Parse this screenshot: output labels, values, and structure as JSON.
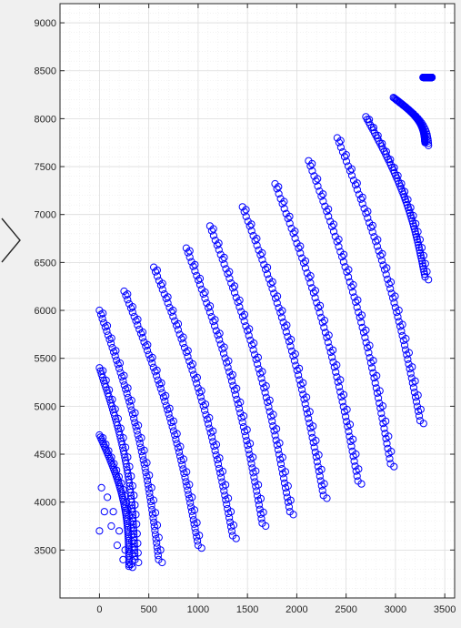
{
  "colors": {
    "figure_background": "#f0f0f0",
    "axes_background": "#ffffff",
    "marker": "#0000ff",
    "axis_line": "#262626",
    "grid_major": "#dcdcdc",
    "grid_minor": "#ebebeb"
  },
  "nav": {
    "icon": "chevron-right-icon"
  },
  "chart_data": {
    "type": "scatter",
    "marker": "circle-open",
    "xlim": [
      -400,
      3600
    ],
    "ylim": [
      3000,
      9200
    ],
    "x_ticks": [
      0,
      500,
      1000,
      1500,
      2000,
      2500,
      3000,
      3500
    ],
    "y_ticks": [
      3500,
      4000,
      4500,
      5000,
      5500,
      6000,
      6500,
      7000,
      7500,
      8000,
      8500,
      9000
    ],
    "grid": "major and minor",
    "title": "",
    "xlabel": "",
    "ylabel": "",
    "series": [
      {
        "points": [
          [
            0,
            3700
          ],
          [
            50,
            3900
          ],
          [
            120,
            3750
          ],
          [
            180,
            3550
          ],
          [
            240,
            3400
          ],
          [
            300,
            3330
          ],
          [
            20,
            4150
          ],
          [
            80,
            4050
          ],
          [
            140,
            3900
          ],
          [
            200,
            3700
          ],
          [
            260,
            3500
          ],
          [
            320,
            3350
          ]
        ]
      },
      {
        "curves": [
          {
            "start": [
              0,
              4700
            ],
            "end": [
              300,
              3350
            ]
          },
          {
            "start": [
              0,
              5400
            ],
            "end": [
              360,
              3400
            ]
          },
          {
            "start": [
              0,
              6000
            ],
            "end": [
              600,
              3400
            ]
          },
          {
            "start": [
              250,
              6200
            ],
            "end": [
              1000,
              3550
            ]
          },
          {
            "start": [
              550,
              6450
            ],
            "end": [
              1350,
              3650
            ]
          },
          {
            "start": [
              880,
              6650
            ],
            "end": [
              1650,
              3780
            ]
          },
          {
            "start": [
              1120,
              6880
            ],
            "end": [
              1930,
              3900
            ]
          },
          {
            "start": [
              1450,
              7080
            ],
            "end": [
              2270,
              4070
            ]
          },
          {
            "start": [
              1780,
              7320
            ],
            "end": [
              2620,
              4220
            ]
          },
          {
            "start": [
              2120,
              7560
            ],
            "end": [
              2950,
              4400
            ]
          },
          {
            "start": [
              2410,
              7800
            ],
            "end": [
              3250,
              4850
            ]
          },
          {
            "start": [
              2700,
              8020
            ],
            "end": [
              3300,
              6350
            ]
          },
          {
            "start": [
              2980,
              8220
            ],
            "end": [
              3300,
              7750
            ]
          },
          {
            "start": [
              3280,
              8430
            ],
            "end": [
              3280,
              8430
            ]
          }
        ]
      }
    ]
  }
}
